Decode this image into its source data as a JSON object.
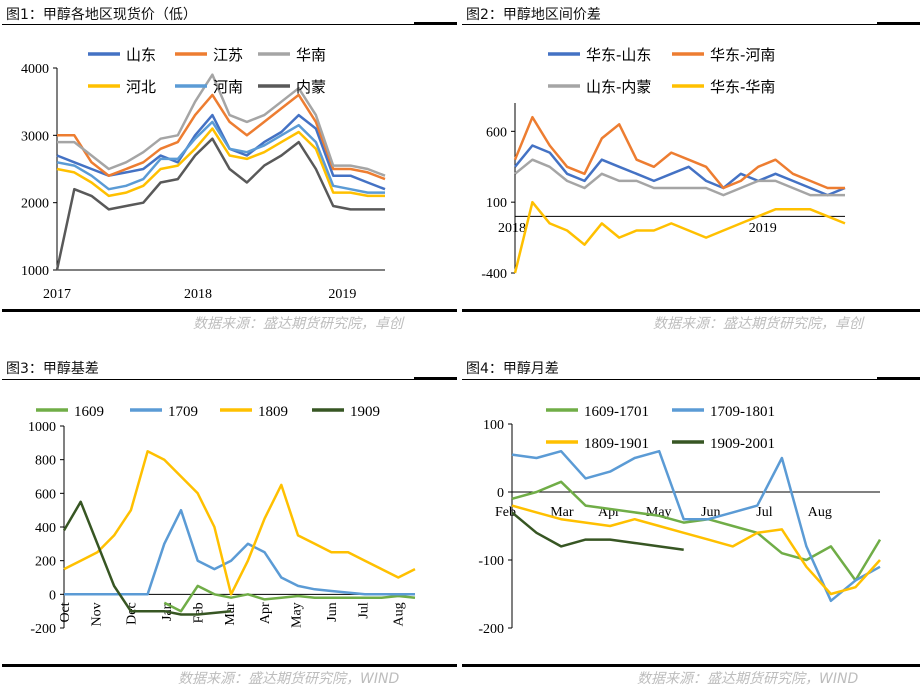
{
  "panels": [
    {
      "title": "图1：甲醇各地区现货价（低）",
      "source": "数据来源：盛达期货研究院，卓创"
    },
    {
      "title": "图2：甲醇地区间价差",
      "source": "数据来源：盛达期货研究院，卓创"
    },
    {
      "title": "图3：甲醇基差",
      "source": "数据来源：盛达期货研究院，WIND"
    },
    {
      "title": "图4：甲醇月差",
      "source": "数据来源：盛达期货研究院，WIND"
    }
  ],
  "colors": {
    "blue": "#4472c4",
    "orange": "#ed7d31",
    "gray": "#a5a5a5",
    "yellow": "#ffc000",
    "lightblue": "#5b9bd5",
    "darkgray": "#595959",
    "green": "#70ad47",
    "darkgreen": "#375623"
  },
  "chart_data": [
    {
      "type": "line",
      "x_ticks": [
        "2017",
        "2018",
        "2019"
      ],
      "y_ticks": [
        1000,
        2000,
        3000,
        4000
      ],
      "ylim": [
        1000,
        4000
      ],
      "legend": "top",
      "series": [
        {
          "name": "山东",
          "color": "#4472c4",
          "values": [
            2700,
            2600,
            2500,
            2400,
            2450,
            2500,
            2700,
            2600,
            3000,
            3300,
            2800,
            2700,
            2900,
            3050,
            3300,
            3100,
            2400,
            2400,
            2300,
            2200
          ]
        },
        {
          "name": "江苏",
          "color": "#ed7d31",
          "values": [
            3000,
            3000,
            2600,
            2400,
            2500,
            2600,
            2800,
            2900,
            3300,
            3600,
            3200,
            3000,
            3200,
            3400,
            3600,
            3200,
            2500,
            2500,
            2450,
            2350
          ]
        },
        {
          "name": "华南",
          "color": "#a5a5a5",
          "values": [
            2900,
            2900,
            2700,
            2500,
            2600,
            2750,
            2950,
            3000,
            3500,
            3900,
            3300,
            3200,
            3300,
            3500,
            3700,
            3300,
            2550,
            2550,
            2500,
            2400
          ]
        },
        {
          "name": "河北",
          "color": "#ffc000",
          "values": [
            2500,
            2450,
            2300,
            2100,
            2150,
            2250,
            2500,
            2550,
            2800,
            3100,
            2700,
            2650,
            2750,
            2900,
            3050,
            2800,
            2150,
            2150,
            2100,
            2100
          ]
        },
        {
          "name": "河南",
          "color": "#5b9bd5",
          "values": [
            2600,
            2550,
            2400,
            2200,
            2250,
            2350,
            2650,
            2650,
            2950,
            3200,
            2800,
            2750,
            2850,
            3000,
            3150,
            2900,
            2250,
            2200,
            2150,
            2150
          ]
        },
        {
          "name": "内蒙",
          "color": "#595959",
          "values": [
            1000,
            2200,
            2100,
            1900,
            1950,
            2000,
            2300,
            2350,
            2700,
            2950,
            2500,
            2300,
            2550,
            2700,
            2900,
            2500,
            1950,
            1900,
            1900,
            1900
          ]
        }
      ]
    },
    {
      "type": "line",
      "x_ticks": [
        "2018",
        "2019"
      ],
      "y_ticks": [
        -400,
        100,
        600
      ],
      "ylim": [
        -400,
        800
      ],
      "legend": "top",
      "series": [
        {
          "name": "华东-山东",
          "color": "#4472c4",
          "values": [
            350,
            500,
            450,
            300,
            250,
            400,
            350,
            300,
            250,
            300,
            350,
            250,
            200,
            300,
            250,
            300,
            250,
            200,
            150,
            200
          ]
        },
        {
          "name": "华东-河南",
          "color": "#ed7d31",
          "values": [
            400,
            700,
            500,
            350,
            300,
            550,
            650,
            400,
            350,
            450,
            400,
            350,
            200,
            250,
            350,
            400,
            300,
            250,
            200,
            200
          ]
        },
        {
          "name": "山东-内蒙",
          "color": "#a5a5a5",
          "values": [
            300,
            400,
            350,
            250,
            200,
            300,
            250,
            250,
            200,
            200,
            200,
            200,
            150,
            200,
            250,
            250,
            200,
            150,
            150,
            150
          ]
        },
        {
          "name": "华东-华南",
          "color": "#ffc000",
          "values": [
            -400,
            100,
            -50,
            -100,
            -200,
            -50,
            -150,
            -100,
            -100,
            -50,
            -100,
            -150,
            -100,
            -50,
            0,
            50,
            50,
            50,
            0,
            -50
          ]
        }
      ]
    },
    {
      "type": "line",
      "x_ticks": [
        "Oct",
        "Nov",
        "Dec",
        "Jan",
        "Feb",
        "Mar",
        "Apr",
        "May",
        "Jun",
        "Jul",
        "Aug"
      ],
      "y_ticks": [
        -200,
        0,
        200,
        400,
        600,
        800,
        1000
      ],
      "ylim": [
        -200,
        1000
      ],
      "legend": "top",
      "series": [
        {
          "name": "1609",
          "color": "#70ad47",
          "values": [
            null,
            null,
            null,
            null,
            null,
            null,
            -50,
            -100,
            50,
            0,
            -20,
            0,
            -30,
            -20,
            -10,
            -20,
            -20,
            -20,
            -20,
            -20,
            -10,
            -20
          ]
        },
        {
          "name": "1709",
          "color": "#5b9bd5",
          "values": [
            0,
            0,
            0,
            0,
            0,
            0,
            300,
            500,
            200,
            150,
            200,
            300,
            250,
            100,
            50,
            30,
            20,
            10,
            0,
            0,
            0,
            0
          ]
        },
        {
          "name": "1809",
          "color": "#ffc000",
          "values": [
            150,
            200,
            250,
            350,
            500,
            850,
            800,
            700,
            600,
            400,
            0,
            200,
            450,
            650,
            350,
            300,
            250,
            250,
            200,
            150,
            100,
            150
          ]
        },
        {
          "name": "1909",
          "color": "#375623",
          "values": [
            380,
            550,
            300,
            50,
            -100,
            -100,
            -100,
            -120,
            -120,
            -110,
            -100,
            null,
            null,
            null,
            null,
            null,
            null,
            null,
            null,
            null,
            null,
            null
          ]
        }
      ]
    },
    {
      "type": "line",
      "x_ticks": [
        "Feb",
        "Mar",
        "Apr",
        "May",
        "Jun",
        "Jul",
        "Aug"
      ],
      "y_ticks": [
        -200,
        -100,
        0,
        100
      ],
      "ylim": [
        -200,
        100
      ],
      "legend": "top",
      "series": [
        {
          "name": "1609-1701",
          "color": "#70ad47",
          "values": [
            -10,
            0,
            15,
            -20,
            -25,
            -30,
            -35,
            -45,
            -40,
            -50,
            -60,
            -90,
            -100,
            -80,
            -130,
            -70
          ]
        },
        {
          "name": "1709-1801",
          "color": "#5b9bd5",
          "values": [
            55,
            50,
            60,
            20,
            30,
            50,
            60,
            -40,
            -40,
            -30,
            -20,
            50,
            -80,
            -160,
            -130,
            -110
          ]
        },
        {
          "name": "1809-1901",
          "color": "#ffc000",
          "values": [
            -20,
            -30,
            -40,
            -45,
            -50,
            -40,
            -50,
            -60,
            -70,
            -80,
            -60,
            -55,
            -110,
            -150,
            -140,
            -100
          ]
        },
        {
          "name": "1909-2001",
          "color": "#375623",
          "values": [
            -30,
            -60,
            -80,
            -70,
            -70,
            -75,
            -80,
            -85,
            null,
            null,
            null,
            null,
            null,
            null,
            null,
            null
          ]
        }
      ]
    }
  ]
}
